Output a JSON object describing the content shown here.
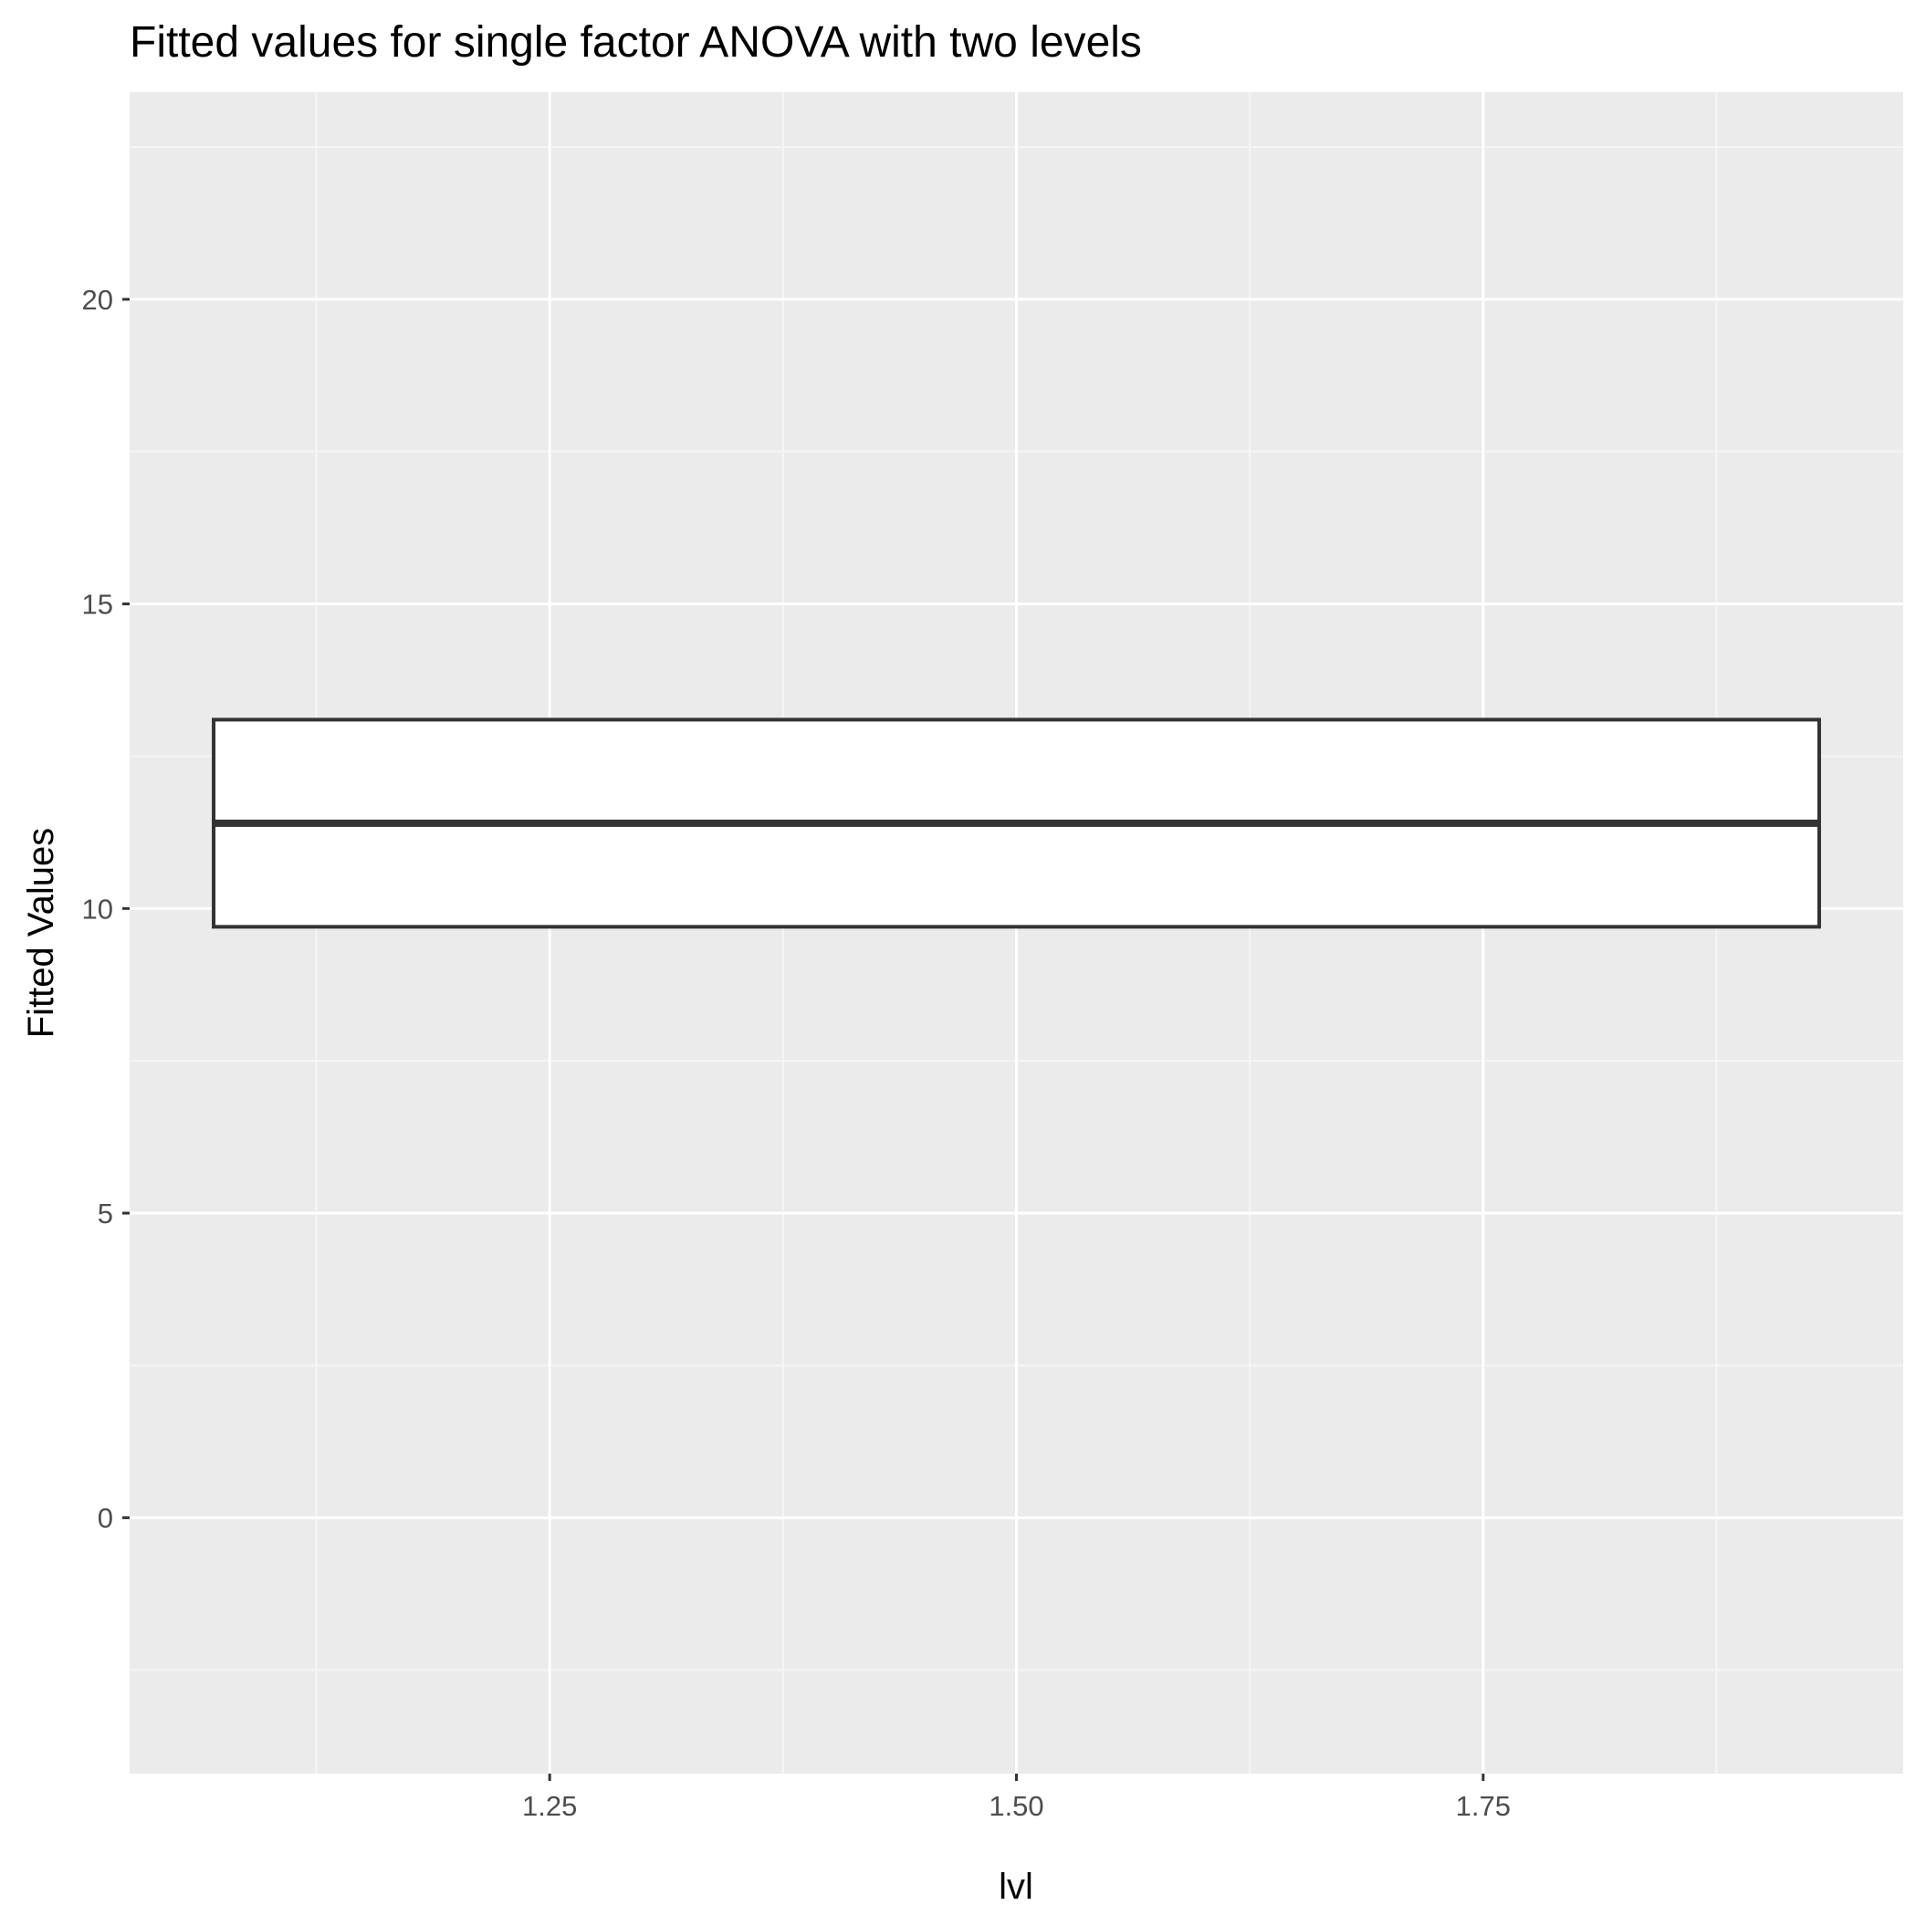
{
  "chart_data": {
    "type": "boxplot",
    "title": "Fitted values for single factor ANOVA with two levels",
    "xlabel": "lvl",
    "ylabel": "Fitted Values",
    "xlim": [
      1.025,
      1.975
    ],
    "ylim": [
      -4.2,
      23.4
    ],
    "x_ticks": [
      1.25,
      1.5,
      1.75
    ],
    "x_tick_labels": [
      "1.25",
      "1.50",
      "1.75"
    ],
    "y_ticks": [
      0,
      5,
      10,
      15,
      20
    ],
    "y_tick_labels": [
      "0",
      "5",
      "10",
      "15",
      "20"
    ],
    "grid": true,
    "boxes": [
      {
        "x_min": 1.07,
        "x_max": 1.93,
        "lower_hinge": 9.7,
        "median": 11.4,
        "upper_hinge": 13.1
      }
    ],
    "colors": {
      "panel_background": "#ebebeb",
      "grid_major": "#ffffff",
      "grid_minor": "#f5f5f5",
      "box_fill": "#ffffff",
      "box_outline": "#333333"
    }
  }
}
